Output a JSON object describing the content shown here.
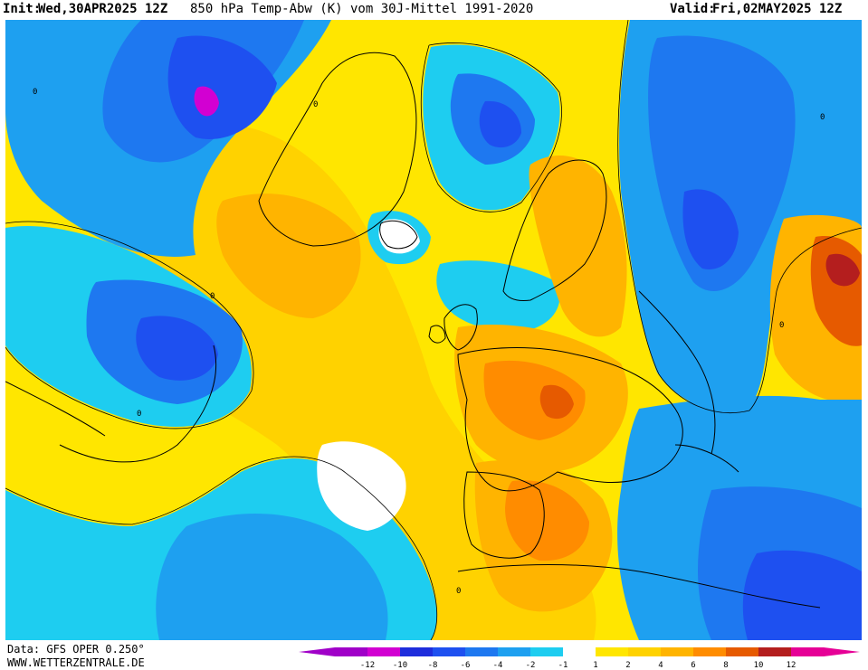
{
  "header": {
    "init_label": "Init:",
    "init_value": "Wed,30APR2025 12Z",
    "product": "850 hPa Temp-Abw (K) vom 30J-Mittel 1991-2020",
    "valid_label": "Valid:",
    "valid_value": "Fri,02MAY2025 12Z"
  },
  "footer": {
    "data_source": "Data: GFS OPER 0.250°",
    "website": "WWW.WETTERZENTRALE.DE"
  },
  "legend": {
    "ticks": [
      "-12",
      "-10",
      "-8",
      "-6",
      "-4",
      "-2",
      "-1",
      "1",
      "2",
      "4",
      "6",
      "8",
      "10",
      "12"
    ],
    "colors": [
      "#a000c8",
      "#d200d2",
      "#1e2ddc",
      "#1e50f0",
      "#1e78f0",
      "#1ea0f0",
      "#1ecdf0",
      "#ffffff",
      "#ffe600",
      "#ffd200",
      "#ffb400",
      "#ff8c00",
      "#e65a00",
      "#b41e1e",
      "#e60096"
    ],
    "left_cap_color": "#a000c8",
    "right_cap_color": "#e60096"
  },
  "palette": {
    "ocean_cold_deep": "#1e50f0",
    "ocean_cold": "#1e78f0",
    "ocean_cool": "#1ea0f0",
    "ocean_light": "#1ecdf0",
    "neutral": "#ffffff",
    "warm_light": "#ffe600",
    "warm": "#ffd200",
    "warm_orange": "#ffb400",
    "hot": "#ff8c00",
    "hot_deep": "#e65a00",
    "extreme": "#b41e1e",
    "extreme_cold": "#d200d2",
    "coastline": "#000000"
  }
}
